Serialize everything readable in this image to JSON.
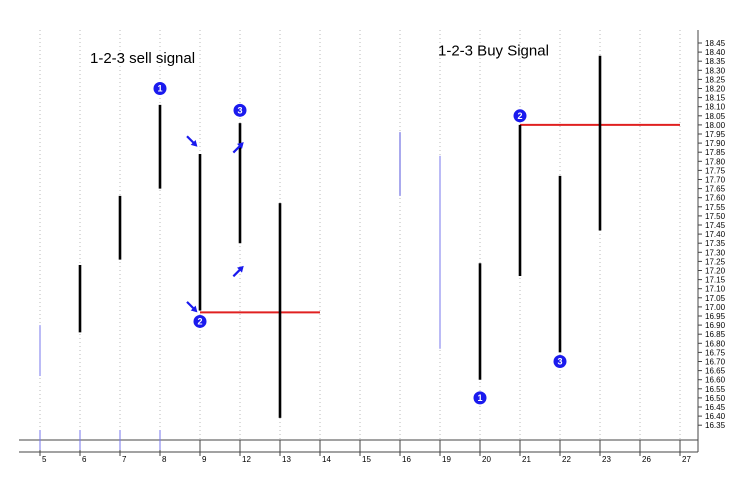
{
  "chart_data": {
    "type": "bar",
    "title": "",
    "xlabel": "",
    "ylabel": "",
    "ylim": [
      16.32,
      18.48
    ],
    "y_ticks": [
      "18.45",
      "18.40",
      "18.35",
      "18.30",
      "18.25",
      "18.20",
      "18.15",
      "18.10",
      "18.05",
      "18.00",
      "17.95",
      "17.90",
      "17.85",
      "17.80",
      "17.75",
      "17.70",
      "17.65",
      "17.60",
      "17.55",
      "17.50",
      "17.45",
      "17.40",
      "17.35",
      "17.30",
      "17.25",
      "17.20",
      "17.15",
      "17.10",
      "17.05",
      "17.00",
      "16.95",
      "16.90",
      "16.85",
      "16.80",
      "16.75",
      "16.70",
      "16.65",
      "16.60",
      "16.55",
      "16.50",
      "16.45",
      "16.40",
      "16.35"
    ],
    "categories": [
      "5",
      "6",
      "7",
      "8",
      "9",
      "12",
      "13",
      "14",
      "15",
      "16",
      "19",
      "20",
      "21",
      "22",
      "23",
      "26",
      "27"
    ],
    "grid": "vertical dotted",
    "bars": [
      {
        "x": "5",
        "low": 16.62,
        "high": 16.9,
        "color": "#7777ee",
        "weight": "thin"
      },
      {
        "x": "6",
        "low": 16.86,
        "high": 17.23,
        "color": "#000000",
        "weight": "thick"
      },
      {
        "x": "7",
        "low": 17.26,
        "high": 17.61,
        "color": "#000000",
        "weight": "thick"
      },
      {
        "x": "8",
        "low": 17.65,
        "high": 18.11,
        "color": "#000000",
        "weight": "thick"
      },
      {
        "x": "9",
        "low": 16.98,
        "high": 17.84,
        "color": "#000000",
        "weight": "thick"
      },
      {
        "x": "12",
        "low": 17.35,
        "high": 18.01,
        "color": "#000000",
        "weight": "thick"
      },
      {
        "x": "13",
        "low": 16.39,
        "high": 17.57,
        "color": "#000000",
        "weight": "thick"
      },
      {
        "x": "16",
        "low": 17.61,
        "high": 17.96,
        "color": "#5555dd",
        "weight": "thin"
      },
      {
        "x": "19",
        "low": 16.77,
        "high": 17.83,
        "color": "#7777ee",
        "weight": "thin"
      },
      {
        "x": "20",
        "low": 16.6,
        "high": 17.24,
        "color": "#000000",
        "weight": "thick"
      },
      {
        "x": "21",
        "low": 17.17,
        "high": 18.0,
        "color": "#000000",
        "weight": "thick"
      },
      {
        "x": "22",
        "low": 16.75,
        "high": 17.72,
        "color": "#000000",
        "weight": "thick"
      },
      {
        "x": "23",
        "low": 17.42,
        "high": 18.38,
        "color": "#000000",
        "weight": "thick"
      }
    ],
    "lines": [
      {
        "from": "9",
        "to": "14",
        "value": 16.97,
        "color": "#e02020"
      },
      {
        "from": "21",
        "to": "27",
        "value": 18.0,
        "color": "#e02020"
      }
    ],
    "texts": [
      {
        "x": "7.5",
        "value": 18.34,
        "text": "1-2-3 sell signal"
      },
      {
        "x": "20.2",
        "value": 18.38,
        "text": "1-2-3 Buy Signal"
      }
    ],
    "markers": [
      {
        "x": "8",
        "value": 18.2,
        "label": "1"
      },
      {
        "x": "9",
        "value": 16.92,
        "label": "2"
      },
      {
        "x": "12",
        "value": 18.08,
        "label": "3"
      },
      {
        "x": "20",
        "value": 16.5,
        "label": "1"
      },
      {
        "x": "21",
        "value": 18.05,
        "label": "2"
      },
      {
        "x": "22",
        "value": 16.7,
        "label": "3"
      }
    ],
    "arrows": [
      {
        "x": "8.8",
        "value": 17.91,
        "dir": "down-right"
      },
      {
        "x": "11.8",
        "value": 17.87,
        "dir": "up-right"
      },
      {
        "x": "11.8",
        "value": 17.19,
        "dir": "up-right"
      },
      {
        "x": "8.8",
        "value": 17.0,
        "dir": "down-right"
      }
    ],
    "colors": {
      "bar": "#000000",
      "signal_line": "#e02020",
      "marker": "#1a1aee",
      "arrow": "#1a1aee",
      "grid": "#b8b8b8"
    }
  }
}
